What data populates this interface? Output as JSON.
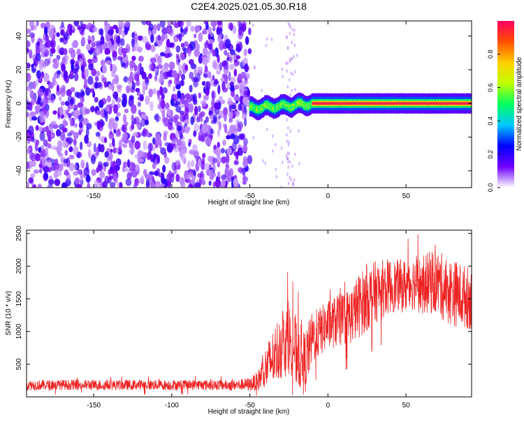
{
  "title": "C2E4.2025.021.05.30.R18",
  "chart_data": [
    {
      "type": "heatmap",
      "xlabel": "Height of straight line (km)",
      "ylabel": "Frequency (Hz)",
      "xlim": [
        -193,
        92
      ],
      "ylim": [
        -50,
        49
      ],
      "xticks": [
        "-150",
        "-100",
        "-50",
        "0",
        "50"
      ],
      "xtick_values": [
        -150,
        -100,
        -50,
        0,
        50
      ],
      "yticks": [
        "-40",
        "-20",
        "0",
        "20",
        "40"
      ],
      "ytick_values": [
        -40,
        -20,
        0,
        20,
        40
      ],
      "colorbar": {
        "label": "Normalized spectral amplitude",
        "ticks": [
          "0.0",
          "0.2",
          "0.4",
          "0.6",
          "0.8"
        ],
        "tick_values": [
          0,
          0.2,
          0.4,
          0.6,
          0.8
        ],
        "range": [
          0,
          1
        ],
        "colors": [
          "#ffffff",
          "#7000ff",
          "#0000ff",
          "#00c8ff",
          "#00ff60",
          "#c0ff00",
          "#ffd000",
          "#ff5000",
          "#ff0060"
        ]
      },
      "noise_region": {
        "x": [
          -193,
          -50
        ],
        "level": 0.3
      },
      "signal_band": {
        "x": [
          -50,
          92
        ],
        "frequency": 0
      }
    },
    {
      "type": "line",
      "xlabel": "Height of straight line (km)",
      "ylabel": "SNR (10 * v/v)",
      "xlim": [
        -193,
        92
      ],
      "ylim": [
        0,
        2550
      ],
      "xticks": [
        "-150",
        "-100",
        "-50",
        "0",
        "50"
      ],
      "xtick_values": [
        -150,
        -100,
        -50,
        0,
        50
      ],
      "yticks": [
        "500",
        "1000",
        "1500",
        "2000",
        "2500"
      ],
      "ytick_values": [
        500,
        1000,
        1500,
        2000,
        2500
      ],
      "grid": false,
      "series": [
        {
          "color": "#ee2222",
          "x": [
            -193,
            -180,
            -160,
            -140,
            -120,
            -100,
            -80,
            -60,
            -50,
            -45,
            -40,
            -35,
            -30,
            -25,
            -20,
            -15,
            -10,
            -5,
            0,
            5,
            10,
            15,
            20,
            25,
            30,
            35,
            40,
            45,
            50,
            55,
            60,
            65,
            70,
            75,
            80,
            85,
            92
          ],
          "y": [
            180,
            180,
            185,
            180,
            185,
            180,
            185,
            180,
            190,
            240,
            420,
            600,
            800,
            900,
            700,
            500,
            900,
            1000,
            1100,
            1150,
            1200,
            1250,
            1400,
            1500,
            1600,
            1650,
            1700,
            1700,
            1700,
            1750,
            1700,
            1750,
            1750,
            1650,
            1600,
            1550,
            1500
          ],
          "spread": [
            80,
            80,
            80,
            80,
            80,
            80,
            80,
            80,
            100,
            150,
            350,
            450,
            550,
            550,
            550,
            500,
            400,
            380,
            380,
            400,
            420,
            450,
            500,
            500,
            480,
            450,
            420,
            400,
            420,
            420,
            450,
            480,
            500,
            520,
            520,
            500,
            480
          ]
        }
      ]
    }
  ]
}
